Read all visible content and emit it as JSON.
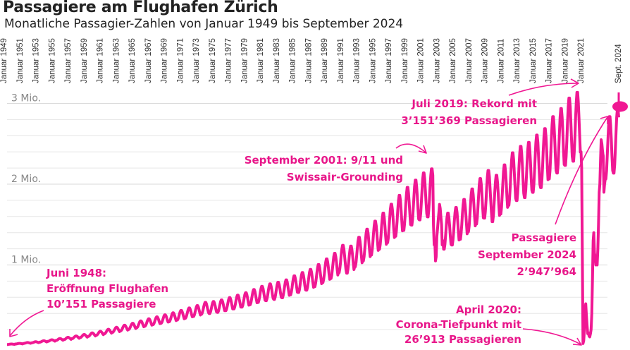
{
  "title": "Passagiere am Flughafen Zürich",
  "subtitle": "Monatliche Passagier-Zahlen von Januar 1949 bis September 2024",
  "colors": {
    "line": "#f01893",
    "grid": "#e6e6e6",
    "text": "#222222",
    "axis_label": "#888888"
  },
  "chart_data": {
    "type": "line",
    "x_start": "Januar 1949",
    "x_end": "Sept. 2024",
    "x_tick_labels": [
      "Januar 1949",
      "Januar 1951",
      "Januar 1953",
      "Januar 1955",
      "Januar 1957",
      "Januar 1959",
      "Januar 1961",
      "Januar 1963",
      "Januar 1965",
      "Januar 1967",
      "Januar 1969",
      "Januar 1971",
      "Januar 1973",
      "Januar 1975",
      "Januar 1977",
      "Januar 1979",
      "Januar 1981",
      "Januar 1983",
      "Januar 1985",
      "Januar 1987",
      "Januar 1989",
      "Januar 1991",
      "Januar 1993",
      "Januar 1995",
      "Januar 1997",
      "Januar 1999",
      "Januar 2001",
      "Januar 2003",
      "Januar 2005",
      "Januar 2007",
      "Januar 2009",
      "Januar 2011",
      "Januar 2013",
      "Januar 2015",
      "Januar 2017",
      "Januar 2019",
      "Januar 2021",
      "Sept. 2024"
    ],
    "y_tick_labels": [
      "1 Mio.",
      "2 Mio.",
      "3 Mio."
    ],
    "y_ticks": [
      1000000,
      2000000,
      3000000
    ],
    "ylim": [
      0,
      3200000
    ],
    "grid": "horizontal",
    "series": [
      {
        "annual_peak_values": [
          [
            1949,
            22000
          ],
          [
            1950,
            30000
          ],
          [
            1951,
            40000
          ],
          [
            1952,
            50000
          ],
          [
            1953,
            62000
          ],
          [
            1954,
            75000
          ],
          [
            1955,
            90000
          ],
          [
            1956,
            105000
          ],
          [
            1957,
            122000
          ],
          [
            1958,
            140000
          ],
          [
            1959,
            160000
          ],
          [
            1960,
            180000
          ],
          [
            1961,
            205000
          ],
          [
            1962,
            230000
          ],
          [
            1963,
            255000
          ],
          [
            1964,
            280000
          ],
          [
            1965,
            310000
          ],
          [
            1966,
            335000
          ],
          [
            1967,
            360000
          ],
          [
            1968,
            385000
          ],
          [
            1969,
            410000
          ],
          [
            1970,
            440000
          ],
          [
            1971,
            470000
          ],
          [
            1972,
            500000
          ],
          [
            1973,
            540000
          ],
          [
            1974,
            550000
          ],
          [
            1975,
            570000
          ],
          [
            1976,
            600000
          ],
          [
            1977,
            630000
          ],
          [
            1978,
            660000
          ],
          [
            1979,
            700000
          ],
          [
            1980,
            740000
          ],
          [
            1981,
            770000
          ],
          [
            1982,
            790000
          ],
          [
            1983,
            820000
          ],
          [
            1984,
            870000
          ],
          [
            1985,
            910000
          ],
          [
            1986,
            950000
          ],
          [
            1987,
            1010000
          ],
          [
            1988,
            1080000
          ],
          [
            1989,
            1150000
          ],
          [
            1990,
            1250000
          ],
          [
            1991,
            1240000
          ],
          [
            1992,
            1350000
          ],
          [
            1993,
            1450000
          ],
          [
            1994,
            1550000
          ],
          [
            1995,
            1650000
          ],
          [
            1996,
            1760000
          ],
          [
            1997,
            1870000
          ],
          [
            1998,
            1970000
          ],
          [
            1999,
            2060000
          ],
          [
            2000,
            2150000
          ],
          [
            2001,
            2200000
          ],
          [
            2002,
            1700000
          ],
          [
            2003,
            1650000
          ],
          [
            2004,
            1720000
          ],
          [
            2005,
            1820000
          ],
          [
            2006,
            1950000
          ],
          [
            2007,
            2080000
          ],
          [
            2008,
            2180000
          ],
          [
            2009,
            2120000
          ],
          [
            2010,
            2250000
          ],
          [
            2011,
            2400000
          ],
          [
            2012,
            2480000
          ],
          [
            2013,
            2530000
          ],
          [
            2014,
            2620000
          ],
          [
            2015,
            2700000
          ],
          [
            2016,
            2850000
          ],
          [
            2017,
            2950000
          ],
          [
            2018,
            3080000
          ],
          [
            2019,
            3151369
          ],
          [
            2020,
            1000000
          ],
          [
            2021,
            1300000
          ],
          [
            2022,
            2500000
          ],
          [
            2023,
            2850000
          ],
          [
            2024,
            2947964
          ]
        ],
        "seasonal_trough_ratio": 0.72,
        "covid_low": {
          "date": "April 2020",
          "value": 26913
        },
        "last": {
          "date": "September 2024",
          "value": 2947964
        }
      }
    ],
    "annotations": [
      {
        "lines": [
          "Juni 1948:",
          "Eröffnung Flughafen",
          "10’151 Passagiere"
        ]
      },
      {
        "lines": [
          "September 2001: 9/11 und",
          "Swissair-Grounding"
        ]
      },
      {
        "lines": [
          "Juli 2019: Rekord mit",
          "3’151’369 Passagieren"
        ]
      },
      {
        "lines": [
          "Passagiere",
          "September 2024",
          "2’947’964"
        ]
      },
      {
        "lines": [
          "April 2020:",
          "Corona-Tiefpunkt mit",
          "26’913 Passagieren"
        ]
      }
    ]
  }
}
